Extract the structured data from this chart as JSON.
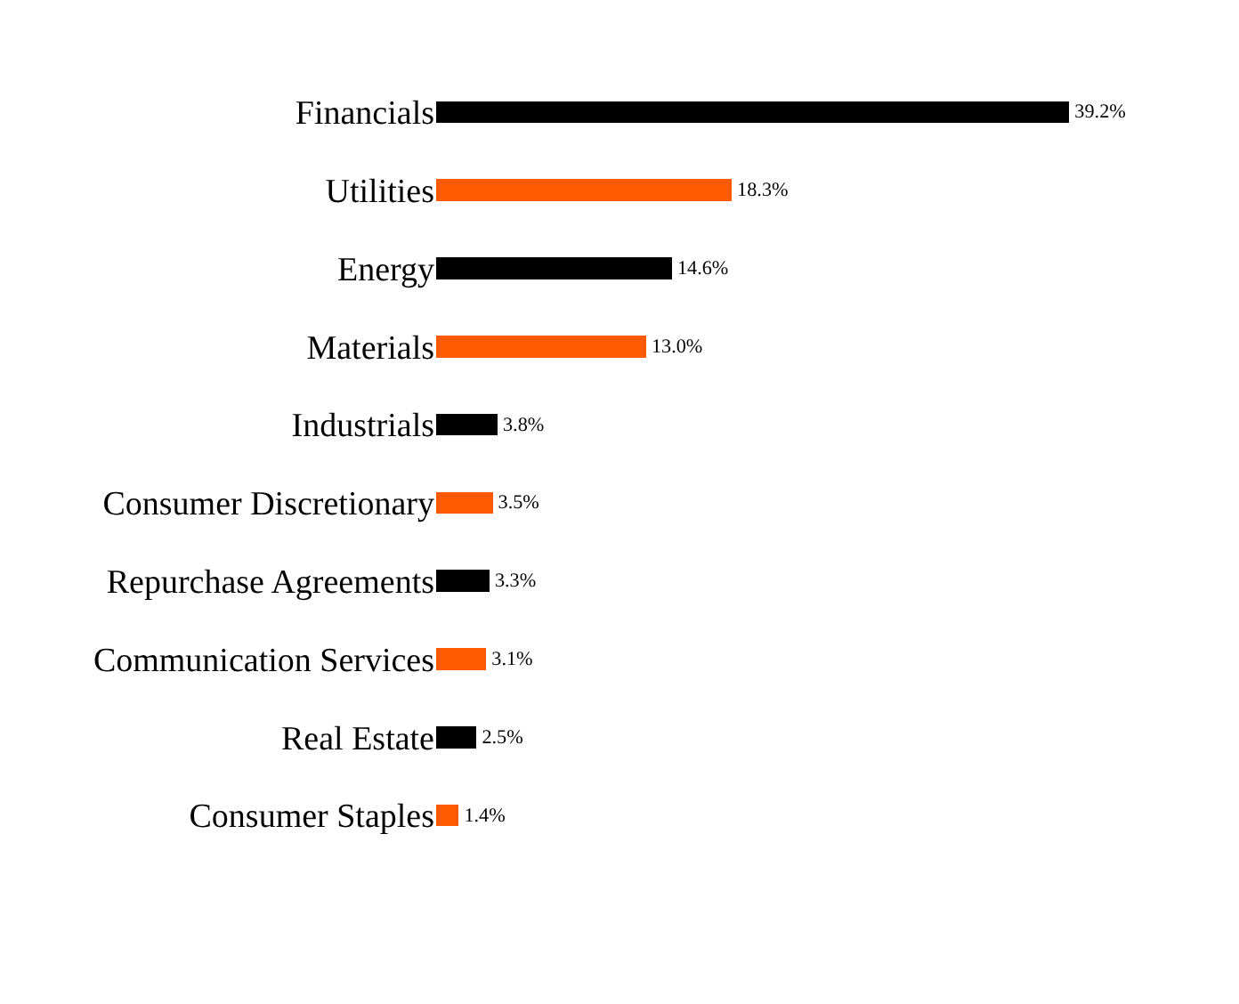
{
  "chart_data": {
    "type": "bar",
    "orientation": "horizontal",
    "categories": [
      "Financials",
      "Utilities",
      "Energy",
      "Materials",
      "Industrials",
      "Consumer Discretionary",
      "Repurchase Agreements",
      "Communication Services",
      "Real Estate",
      "Consumer Staples"
    ],
    "values": [
      39.2,
      18.3,
      14.6,
      13.0,
      3.8,
      3.5,
      3.3,
      3.1,
      2.5,
      1.4
    ],
    "colors": [
      "#000000",
      "#ff5a00",
      "#000000",
      "#ff5a00",
      "#000000",
      "#ff5a00",
      "#000000",
      "#ff5a00",
      "#000000",
      "#ff5a00"
    ],
    "value_labels": [
      "39.2%",
      "18.3%",
      "14.6%",
      "13.0%",
      "3.8%",
      "3.5%",
      "3.3%",
      "3.1%",
      "2.5%",
      "1.4%"
    ],
    "tick_labels": "y",
    "grid": false,
    "legend": false
  }
}
